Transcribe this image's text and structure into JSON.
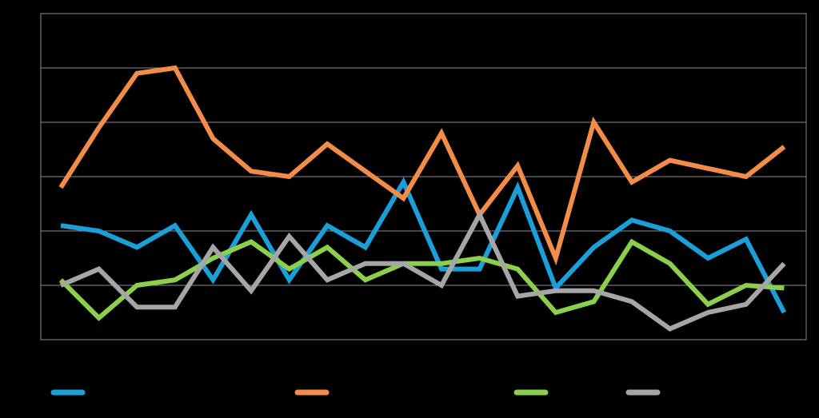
{
  "chart_data": {
    "type": "line",
    "title": "",
    "xlabel": "",
    "ylabel": "",
    "ylim": [
      0,
      6
    ],
    "grid": true,
    "legend_position": "bottom",
    "x": [
      1,
      2,
      3,
      4,
      5,
      6,
      7,
      8,
      9,
      10,
      11,
      12,
      13,
      14,
      15,
      16,
      17,
      18,
      19,
      20
    ],
    "series": [
      {
        "color": "#1a9fd9",
        "values": [
          2.1,
          2.0,
          1.7,
          2.1,
          1.1,
          2.3,
          1.1,
          2.1,
          1.7,
          2.9,
          1.3,
          1.3,
          2.8,
          0.95,
          1.7,
          2.2,
          2.0,
          1.5,
          1.85,
          0.5
        ]
      },
      {
        "color": "#f28c48",
        "values": [
          2.8,
          3.9,
          4.9,
          5.0,
          3.7,
          3.1,
          3.0,
          3.6,
          3.1,
          2.6,
          3.8,
          2.3,
          3.2,
          1.5,
          4.0,
          2.9,
          3.3,
          3.15,
          3.0,
          3.55
        ]
      },
      {
        "color": "#8ccf4d",
        "values": [
          1.1,
          0.4,
          1.0,
          1.1,
          1.5,
          1.8,
          1.3,
          1.7,
          1.1,
          1.4,
          1.4,
          1.5,
          1.3,
          0.5,
          0.7,
          1.8,
          1.4,
          0.65,
          1.0,
          0.95
        ]
      },
      {
        "color": "#a6a6a6",
        "values": [
          1.0,
          1.3,
          0.6,
          0.6,
          1.7,
          0.9,
          1.9,
          1.1,
          1.4,
          1.4,
          1.0,
          2.3,
          0.8,
          0.9,
          0.9,
          0.7,
          0.2,
          0.5,
          0.65,
          1.4
        ]
      }
    ]
  }
}
